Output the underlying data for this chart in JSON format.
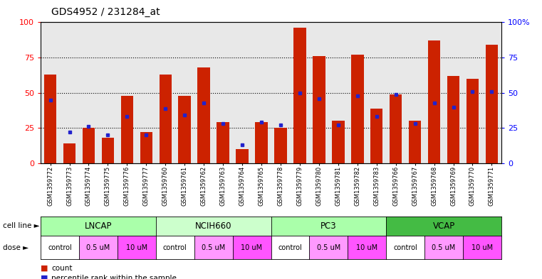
{
  "title": "GDS4952 / 231284_at",
  "samples": [
    "GSM1359772",
    "GSM1359773",
    "GSM1359774",
    "GSM1359775",
    "GSM1359776",
    "GSM1359777",
    "GSM1359760",
    "GSM1359761",
    "GSM1359762",
    "GSM1359763",
    "GSM1359764",
    "GSM1359765",
    "GSM1359778",
    "GSM1359779",
    "GSM1359780",
    "GSM1359781",
    "GSM1359782",
    "GSM1359783",
    "GSM1359766",
    "GSM1359767",
    "GSM1359768",
    "GSM1359769",
    "GSM1359770",
    "GSM1359771"
  ],
  "counts": [
    63,
    14,
    25,
    18,
    48,
    22,
    63,
    48,
    68,
    29,
    10,
    29,
    25,
    96,
    76,
    30,
    77,
    39,
    49,
    30,
    87,
    62,
    60,
    84
  ],
  "percentiles": [
    45,
    22,
    26,
    20,
    33,
    20,
    39,
    34,
    43,
    28,
    13,
    29,
    27,
    50,
    46,
    27,
    48,
    33,
    49,
    28,
    43,
    40,
    51,
    51
  ],
  "bar_color": "#cc2200",
  "dot_color": "#2222cc",
  "grid_lines": [
    25,
    50,
    75
  ],
  "plot_bg": "#e8e8e8",
  "cell_line_names": [
    "LNCAP",
    "NCIH660",
    "PC3",
    "VCAP"
  ],
  "cell_line_colors": [
    "#aaffaa",
    "#ccffcc",
    "#aaffaa",
    "#44bb44"
  ],
  "dose_labels": [
    "control",
    "0.5 uM",
    "10 uM"
  ],
  "dose_colors": [
    "#ffffff",
    "#ff99ff",
    "#ff55ff"
  ],
  "right_ytick_labels": [
    "0",
    "25",
    "50",
    "75",
    "100%"
  ],
  "left_ytick_labels": [
    "0",
    "25",
    "50",
    "75",
    "100"
  ]
}
